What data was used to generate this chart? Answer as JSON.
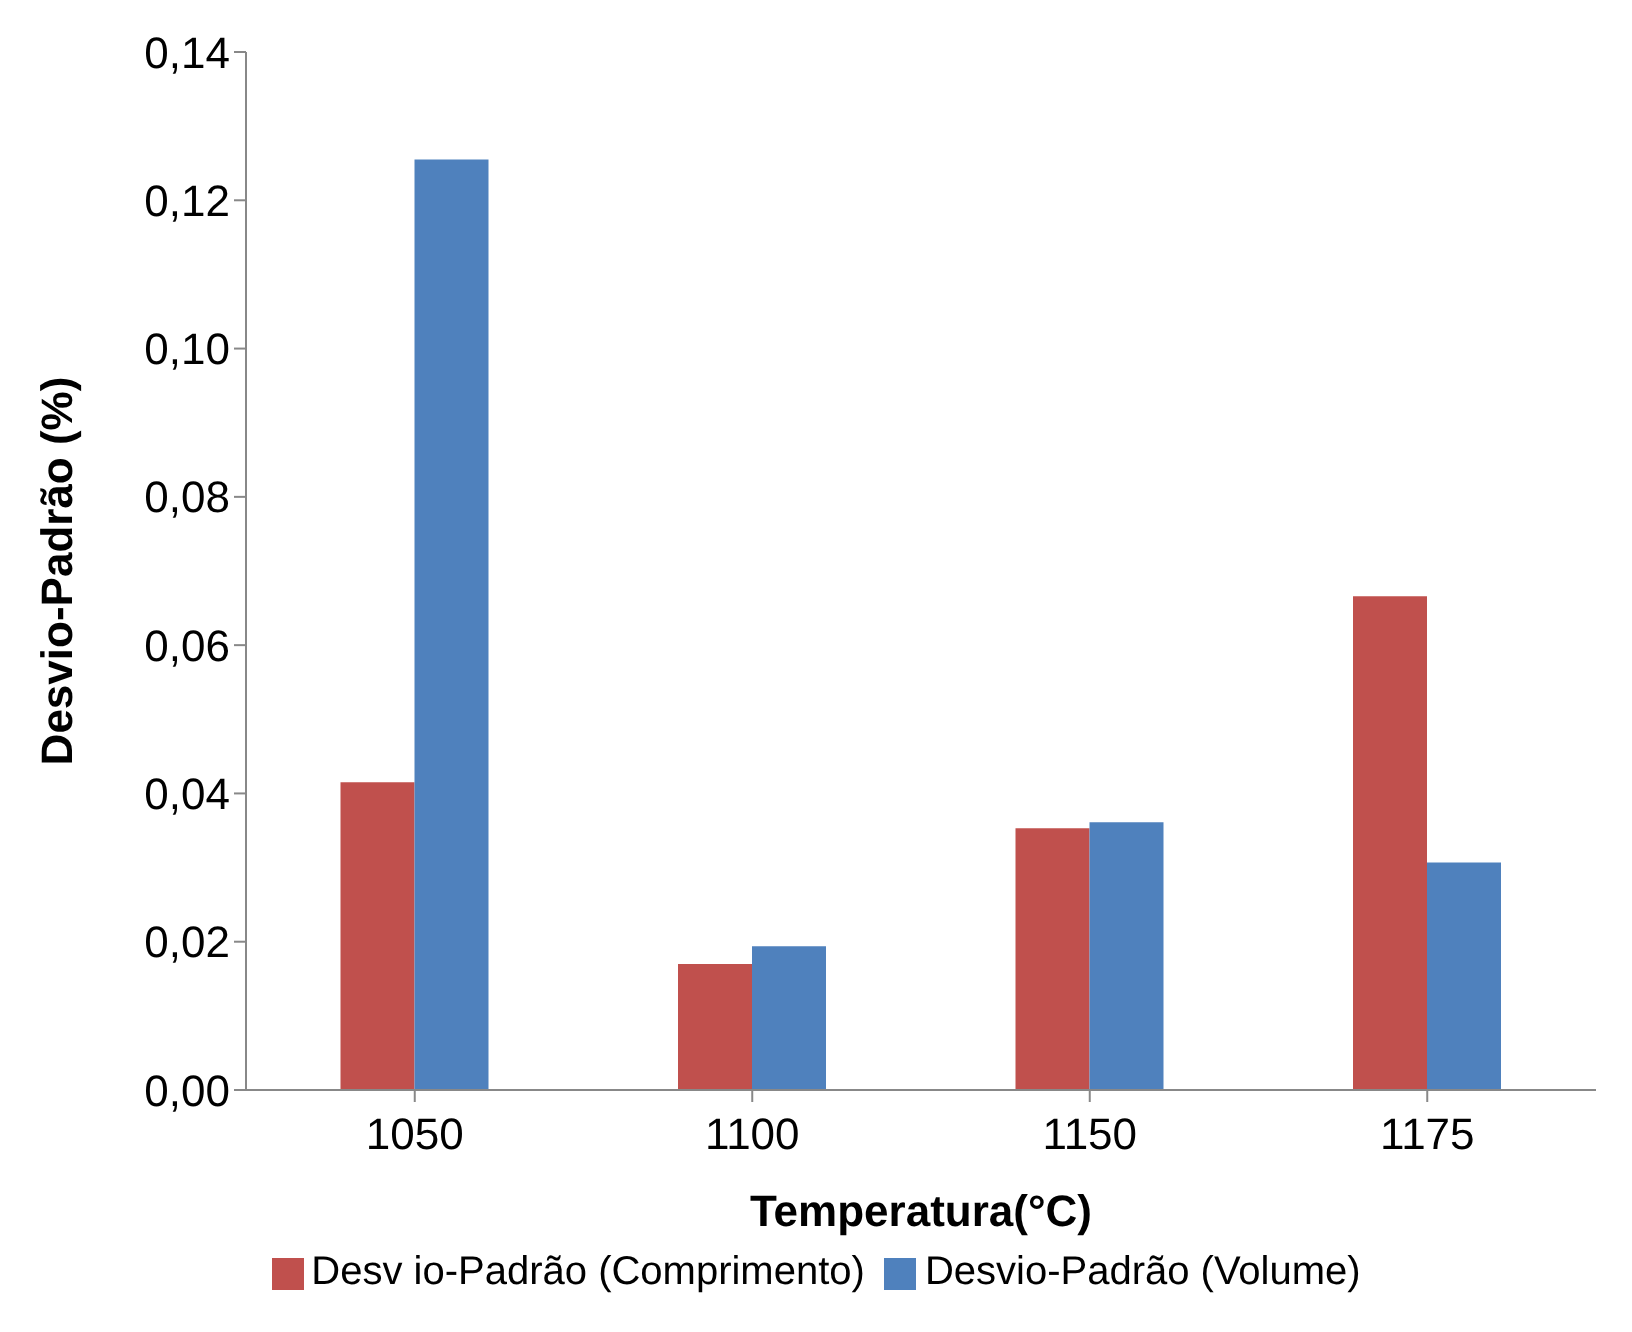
{
  "chart_data": {
    "type": "bar",
    "xlabel": "Temperatura(°C)",
    "ylabel": "Desvio-Padrão (%)",
    "categories": [
      "1050",
      "1100",
      "1150",
      "1175"
    ],
    "series": [
      {
        "name": "Desv io-Padrão (Comprimento)",
        "color": "#c0504d",
        "values": [
          0.0415,
          0.017,
          0.0353,
          0.0666
        ]
      },
      {
        "name": "Desvio-Padrão (Volume)",
        "color": "#4f81bd",
        "values": [
          0.1255,
          0.0194,
          0.0361,
          0.0307
        ]
      }
    ],
    "ylim": [
      0,
      0.14
    ],
    "yticks": [
      {
        "value": 0,
        "label": "0,00"
      },
      {
        "value": 0.02,
        "label": "0,02"
      },
      {
        "value": 0.04,
        "label": "0,04"
      },
      {
        "value": 0.06,
        "label": "0,06"
      },
      {
        "value": 0.08,
        "label": "0,08"
      },
      {
        "value": 0.1,
        "label": "0,10"
      },
      {
        "value": 0.12,
        "label": "0,12"
      },
      {
        "value": 0.14,
        "label": "0,14"
      }
    ],
    "grid": false,
    "legend": "bottom"
  }
}
